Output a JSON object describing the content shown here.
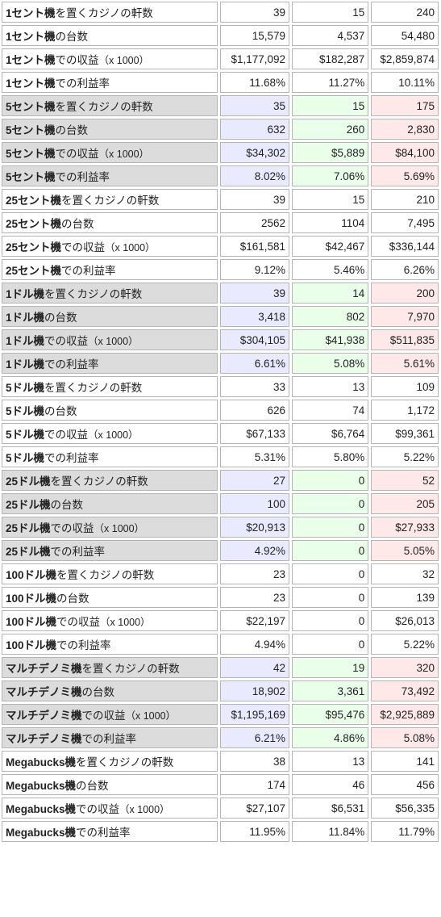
{
  "rows": [
    {
      "label_bold": "1セント機",
      "label_rest": "を置くカジノの軒数",
      "note": "",
      "v1": "39",
      "v2": "15",
      "v3": "240",
      "shaded": false
    },
    {
      "label_bold": "1セント機",
      "label_rest": "の台数",
      "note": "",
      "v1": "15,579",
      "v2": "4,537",
      "v3": "54,480",
      "shaded": false
    },
    {
      "label_bold": "1セント機",
      "label_rest": "での収益",
      "note": "（x 1000）",
      "v1": "$1,177,092",
      "v2": "$182,287",
      "v3": "$2,859,874",
      "shaded": false
    },
    {
      "label_bold": "1セント機",
      "label_rest": "での利益率",
      "note": "",
      "v1": "11.68%",
      "v2": "11.27%",
      "v3": "10.11%",
      "shaded": false
    },
    {
      "label_bold": "5セント機",
      "label_rest": "を置くカジノの軒数",
      "note": "",
      "v1": "35",
      "v2": "15",
      "v3": "175",
      "shaded": true
    },
    {
      "label_bold": "5セント機",
      "label_rest": "の台数",
      "note": "",
      "v1": "632",
      "v2": "260",
      "v3": "2,830",
      "shaded": true
    },
    {
      "label_bold": "5セント機",
      "label_rest": "での収益",
      "note": "（x 1000）",
      "v1": "$34,302",
      "v2": "$5,889",
      "v3": "$84,100",
      "shaded": true
    },
    {
      "label_bold": "5セント機",
      "label_rest": "での利益率",
      "note": "",
      "v1": "8.02%",
      "v2": "7.06%",
      "v3": "5.69%",
      "shaded": true
    },
    {
      "label_bold": "25セント機",
      "label_rest": "を置くカジノの軒数",
      "note": "",
      "v1": "39",
      "v2": "15",
      "v3": "210",
      "shaded": false
    },
    {
      "label_bold": "25セント機",
      "label_rest": "の台数",
      "note": "",
      "v1": "2562",
      "v2": "1104",
      "v3": "7,495",
      "shaded": false
    },
    {
      "label_bold": "25セント機",
      "label_rest": "での収益",
      "note": "（x 1000）",
      "v1": "$161,581",
      "v2": "$42,467",
      "v3": "$336,144",
      "shaded": false
    },
    {
      "label_bold": "25セント機",
      "label_rest": "での利益率",
      "note": "",
      "v1": "9.12%",
      "v2": "5.46%",
      "v3": "6.26%",
      "shaded": false
    },
    {
      "label_bold": "1ドル機",
      "label_rest": "を置くカジノの軒数",
      "note": "",
      "v1": "39",
      "v2": "14",
      "v3": "200",
      "shaded": true
    },
    {
      "label_bold": "1ドル機",
      "label_rest": "の台数",
      "note": "",
      "v1": "3,418",
      "v2": "802",
      "v3": "7,970",
      "shaded": true
    },
    {
      "label_bold": "1ドル機",
      "label_rest": "での収益",
      "note": "（x 1000）",
      "v1": "$304,105",
      "v2": "$41,938",
      "v3": "$511,835",
      "shaded": true
    },
    {
      "label_bold": "1ドル機",
      "label_rest": "での利益率",
      "note": "",
      "v1": "6.61%",
      "v2": "5.08%",
      "v3": "5.61%",
      "shaded": true
    },
    {
      "label_bold": "5ドル機",
      "label_rest": "を置くカジノの軒数",
      "note": "",
      "v1": "33",
      "v2": "13",
      "v3": "109",
      "shaded": false
    },
    {
      "label_bold": "5ドル機",
      "label_rest": "の台数",
      "note": "",
      "v1": "626",
      "v2": "74",
      "v3": "1,172",
      "shaded": false
    },
    {
      "label_bold": "5ドル機",
      "label_rest": "での収益",
      "note": "（x 1000）",
      "v1": "$67,133",
      "v2": "$6,764",
      "v3": "$99,361",
      "shaded": false
    },
    {
      "label_bold": "5ドル機",
      "label_rest": "での利益率",
      "note": "",
      "v1": "5.31%",
      "v2": "5.80%",
      "v3": "5.22%",
      "shaded": false
    },
    {
      "label_bold": "25ドル機",
      "label_rest": "を置くカジノの軒数",
      "note": "",
      "v1": "27",
      "v2": "0",
      "v3": "52",
      "shaded": true
    },
    {
      "label_bold": "25ドル機",
      "label_rest": "の台数",
      "note": "",
      "v1": "100",
      "v2": "0",
      "v3": "205",
      "shaded": true
    },
    {
      "label_bold": "25ドル機",
      "label_rest": "での収益",
      "note": "（x 1000）",
      "v1": "$20,913",
      "v2": "0",
      "v3": "$27,933",
      "shaded": true
    },
    {
      "label_bold": "25ドル機",
      "label_rest": "での利益率",
      "note": "",
      "v1": "4.92%",
      "v2": "0",
      "v3": "5.05%",
      "shaded": true
    },
    {
      "label_bold": "100ドル機",
      "label_rest": "を置くカジノの軒数",
      "note": "",
      "v1": "23",
      "v2": "0",
      "v3": "32",
      "shaded": false
    },
    {
      "label_bold": "100ドル機",
      "label_rest": "の台数",
      "note": "",
      "v1": "23",
      "v2": "0",
      "v3": "139",
      "shaded": false
    },
    {
      "label_bold": "100ドル機",
      "label_rest": "での収益",
      "note": "（x 1000）",
      "v1": "$22,197",
      "v2": "0",
      "v3": "$26,013",
      "shaded": false
    },
    {
      "label_bold": "100ドル機",
      "label_rest": "での利益率",
      "note": "",
      "v1": "4.94%",
      "v2": "0",
      "v3": "5.22%",
      "shaded": false
    },
    {
      "label_bold": "マルチデノミ機",
      "label_rest": "を置くカジノの軒数",
      "note": "",
      "v1": "42",
      "v2": "19",
      "v3": "320",
      "shaded": true
    },
    {
      "label_bold": "マルチデノミ機",
      "label_rest": "の台数",
      "note": "",
      "v1": "18,902",
      "v2": "3,361",
      "v3": "73,492",
      "shaded": true
    },
    {
      "label_bold": "マルチデノミ機",
      "label_rest": "での収益",
      "note": "（x 1000）",
      "v1": "$1,195,169",
      "v2": "$95,476",
      "v3": "$2,925,889",
      "shaded": true
    },
    {
      "label_bold": "マルチデノミ機",
      "label_rest": "での利益率",
      "note": "",
      "v1": "6.21%",
      "v2": "4.86%",
      "v3": "5.08%",
      "shaded": true
    },
    {
      "label_bold": "Megabucks機",
      "label_rest": "を置くカジノの軒数",
      "note": "",
      "v1": "38",
      "v2": "13",
      "v3": "141",
      "shaded": false
    },
    {
      "label_bold": "Megabucks機",
      "label_rest": "の台数",
      "note": "",
      "v1": "174",
      "v2": "46",
      "v3": "456",
      "shaded": false
    },
    {
      "label_bold": "Megabucks機",
      "label_rest": "での収益",
      "note": "（x 1000）",
      "v1": "$27,107",
      "v2": "$6,531",
      "v3": "$56,335",
      "shaded": false
    },
    {
      "label_bold": "Megabucks機",
      "label_rest": "での利益率",
      "note": "",
      "v1": "11.95%",
      "v2": "11.84%",
      "v3": "11.79%",
      "shaded": false
    }
  ]
}
